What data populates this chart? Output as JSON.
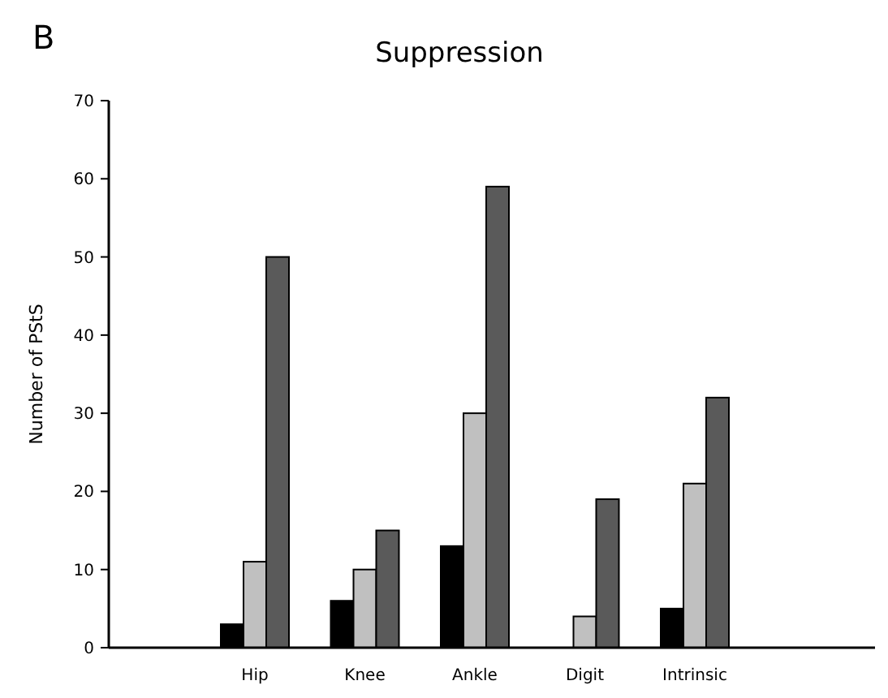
{
  "chart_data": {
    "type": "bar",
    "title": "Suppression",
    "ylabel": "Number of PStS",
    "categories": [
      "Hip",
      "Knee",
      "Ankle",
      "Digit",
      "Intrinsic"
    ],
    "series": [
      {
        "color": "#000000",
        "values": [
          3,
          6,
          13,
          0,
          5
        ]
      },
      {
        "color": "#c0c0c0",
        "values": [
          11,
          10,
          30,
          4,
          21
        ]
      },
      {
        "color": "#5a5a5a",
        "values": [
          50,
          15,
          59,
          19,
          32
        ]
      }
    ],
    "ylim": [
      0,
      70
    ],
    "yticks": [
      0,
      10,
      20,
      30,
      40,
      50,
      60,
      70
    ],
    "grid": false,
    "annotations": [
      "B"
    ]
  }
}
